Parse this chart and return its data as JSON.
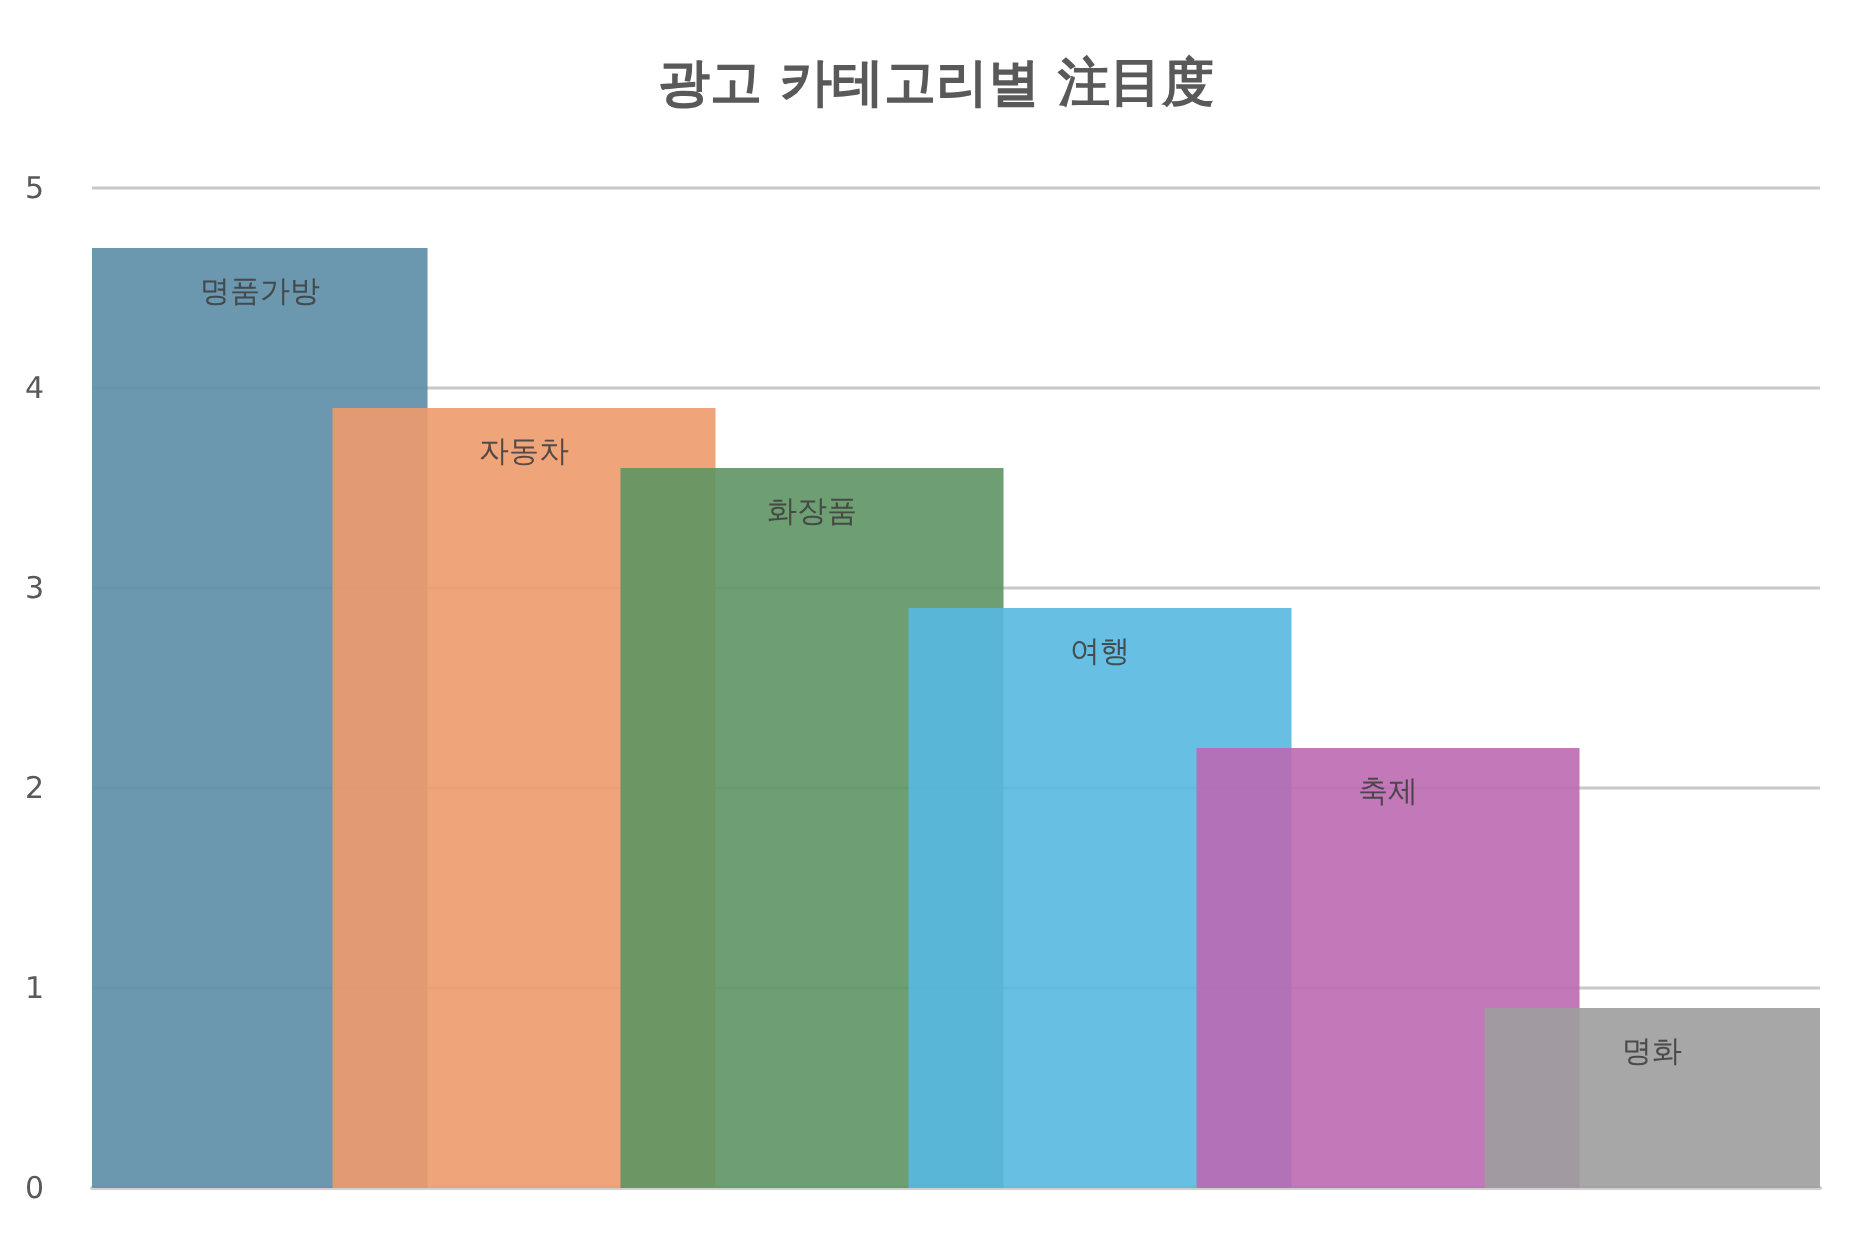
{
  "chart_data": {
    "type": "bar",
    "title": "광고 카테고리별 注目度",
    "categories": [
      "명품가방",
      "자동차",
      "화장품",
      "여행",
      "축제",
      "명화"
    ],
    "values": [
      4.7,
      3.9,
      3.6,
      2.9,
      2.2,
      0.9
    ],
    "colors": [
      "#5b8ca6",
      "#ee9a6c",
      "#5e9563",
      "#57b9e0",
      "#bb69b1",
      "#9d9d9d"
    ],
    "ylim": [
      0,
      5
    ],
    "yticks": [
      0,
      1,
      2,
      3,
      4,
      5
    ],
    "grid": "y"
  }
}
